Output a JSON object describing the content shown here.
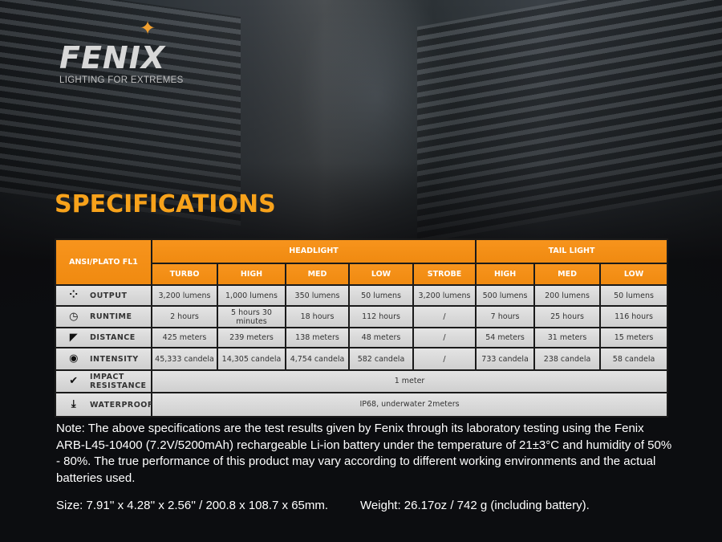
{
  "logo": {
    "brand": "FENIX",
    "tagline": "LIGHTING FOR EXTREMES"
  },
  "title": "SPECIFICATIONS",
  "colors": {
    "accent": "#f7941d",
    "title": "#f7a21b"
  },
  "table": {
    "corner": "ANSI/PLATO FL1",
    "groups": [
      "HEADLIGHT",
      "TAIL LIGHT"
    ],
    "modes": [
      "TURBO",
      "HIGH",
      "MED",
      "LOW",
      "STROBE",
      "HIGH",
      "MED",
      "LOW"
    ],
    "rows": [
      {
        "icon": "output-icon",
        "label": "OUTPUT",
        "values": [
          "3,200 lumens",
          "1,000 lumens",
          "350 lumens",
          "50 lumens",
          "3,200 lumens",
          "500 lumens",
          "200 lumens",
          "50 lumens"
        ]
      },
      {
        "icon": "clock-icon",
        "label": "RUNTIME",
        "values": [
          "2 hours",
          "5 hours 30 minutes",
          "18 hours",
          "112 hours",
          "/",
          "7 hours",
          "25 hours",
          "116 hours"
        ]
      },
      {
        "icon": "distance-icon",
        "label": "DISTANCE",
        "values": [
          "425 meters",
          "239 meters",
          "138 meters",
          "48 meters",
          "/",
          "54 meters",
          "31 meters",
          "15 meters"
        ]
      },
      {
        "icon": "target-icon",
        "label": "INTENSITY",
        "values": [
          "45,333 candela",
          "14,305 candela",
          "4,754 candela",
          "582 candela",
          "/",
          "733 candela",
          "238 candela",
          "58 candela"
        ]
      }
    ],
    "impact": {
      "icon": "impact-icon",
      "label": "IMPACT RESISTANCE",
      "value": "1 meter"
    },
    "waterproof": {
      "icon": "waterproof-icon",
      "label": "WATERPROOF",
      "value": "IP68, underwater 2meters"
    }
  },
  "note": "Note: The above specifications are the test results given by Fenix through its laboratory testing using the Fenix ARB-L45-10400 (7.2V/5200mAh) rechargeable Li-ion battery under the temperature of 21±3°C and humidity of 50% - 80%. The true performance of this product may vary according to different working environments and the actual batteries used.",
  "size": "Size: 7.91'' x 4.28'' x 2.56'' / 200.8 x 108.7 x 65mm.",
  "weight": "Weight: 26.17oz / 742 g (including battery)."
}
